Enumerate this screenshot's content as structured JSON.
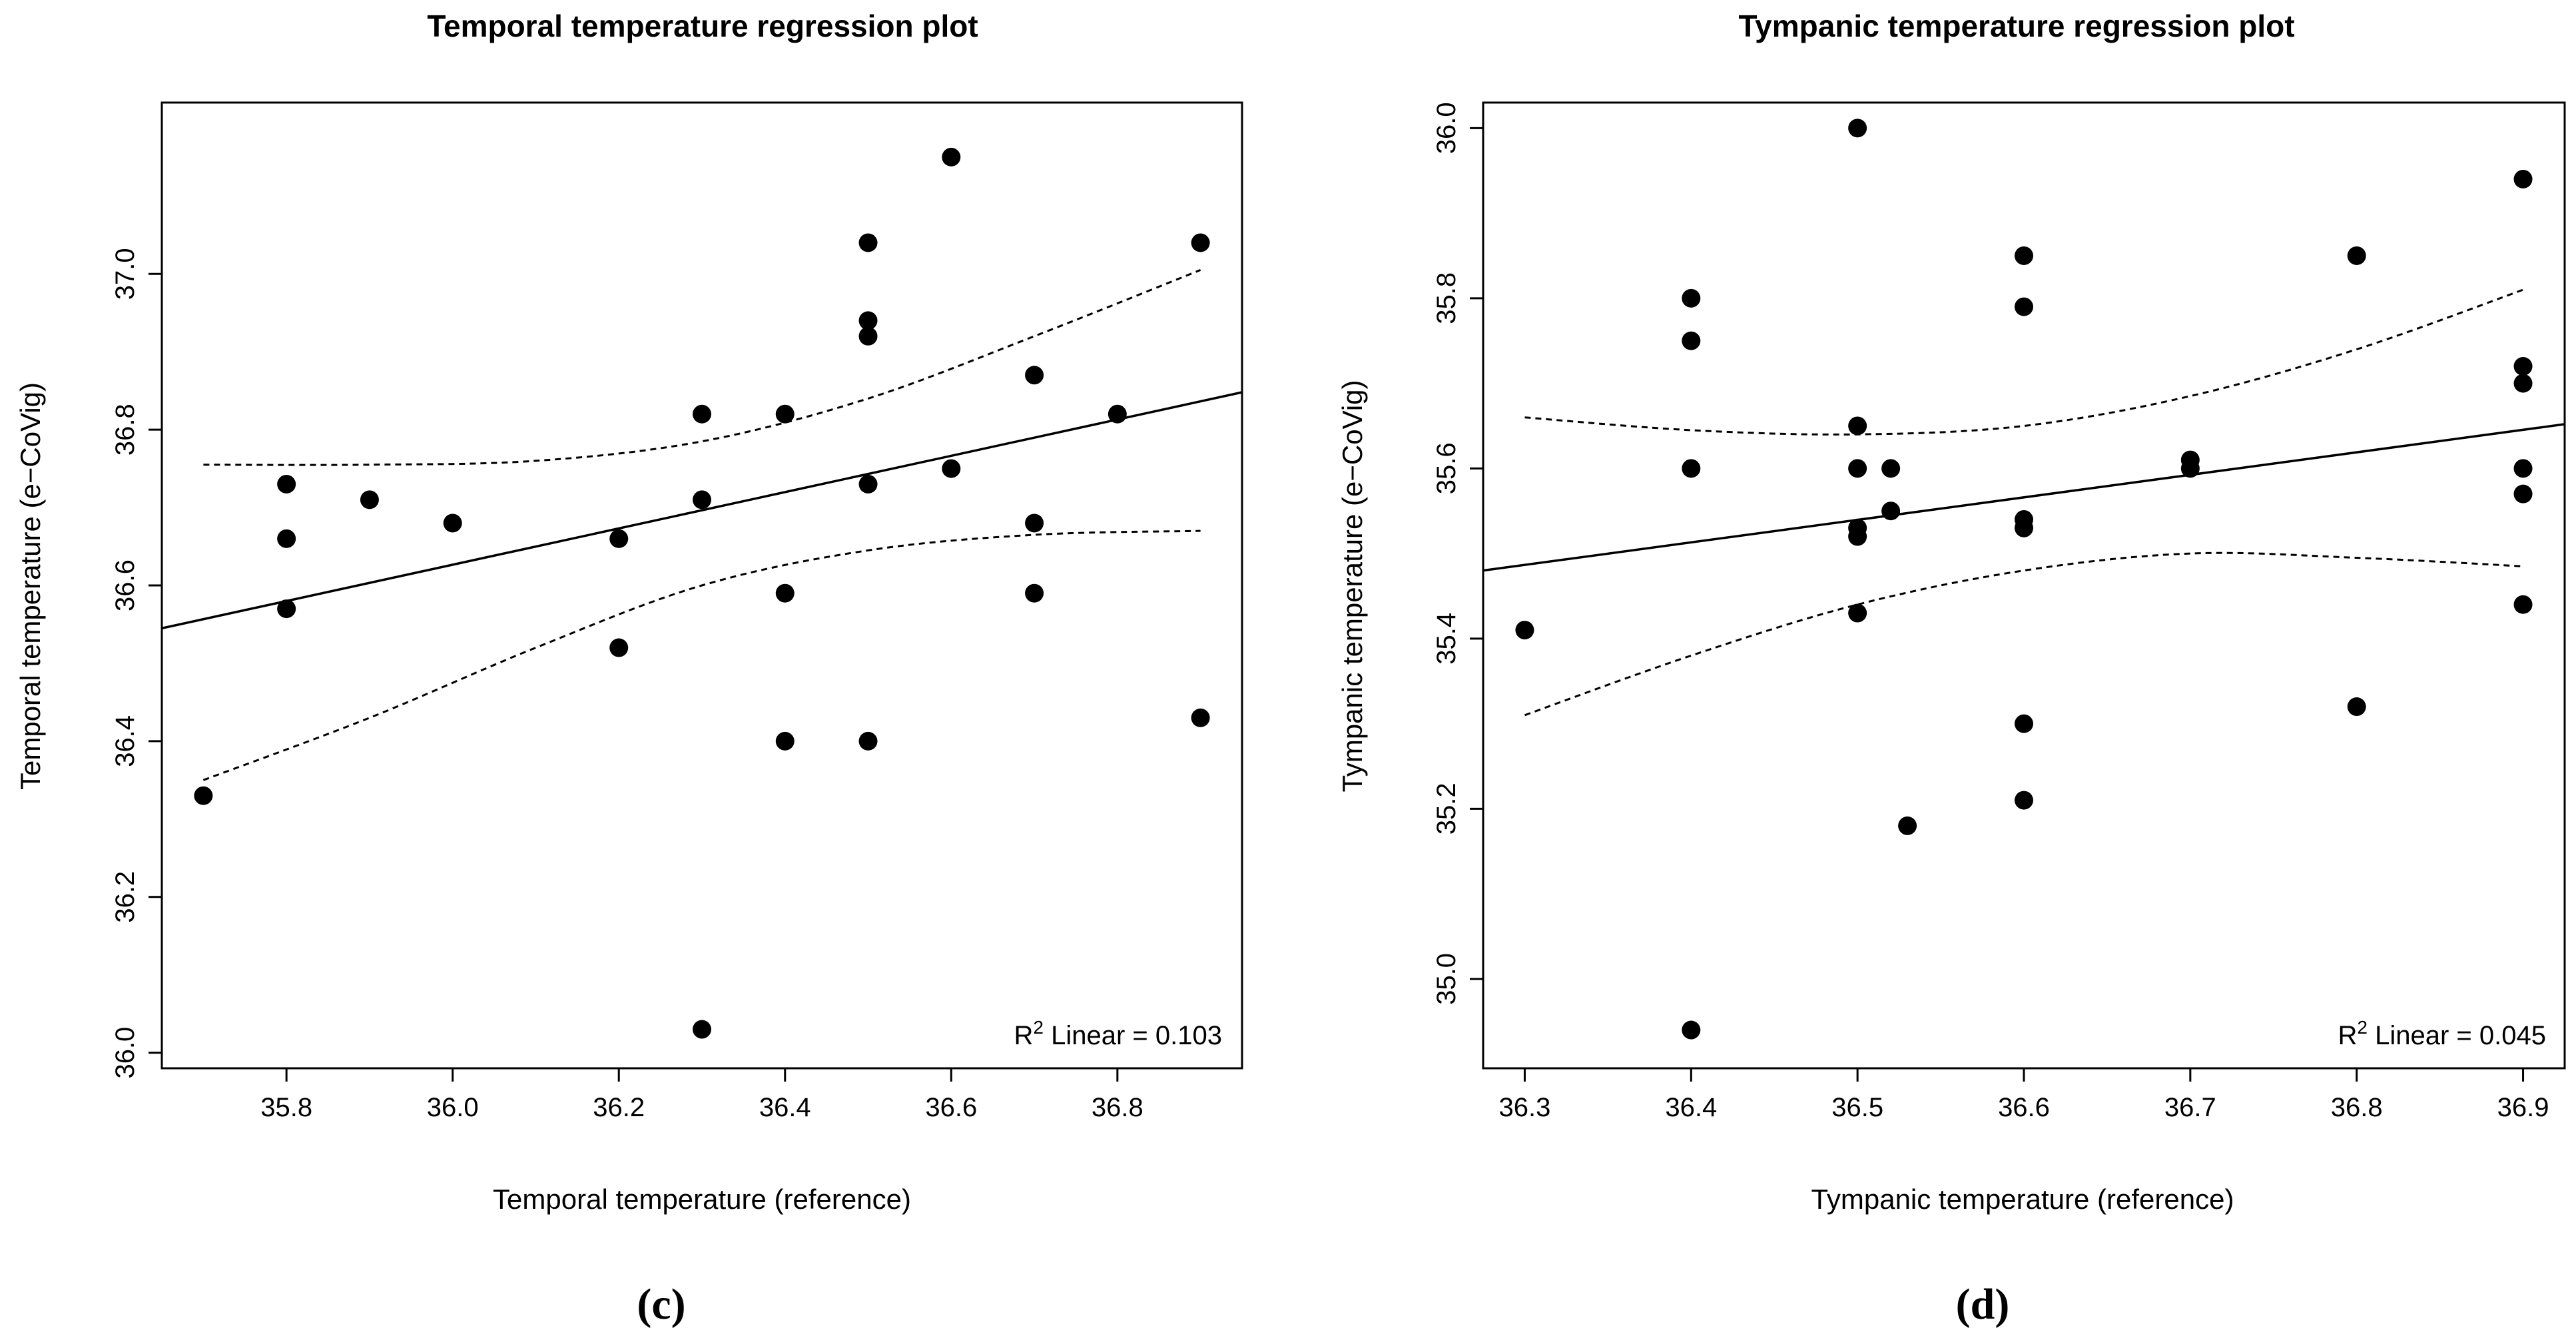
{
  "figure": {
    "panels": [
      {
        "label": "(c)",
        "annotation": {
          "prefix": "R",
          "superscript": "2",
          "text": " Linear = 0.103"
        }
      },
      {
        "label": "(d)",
        "annotation": {
          "prefix": "R",
          "superscript": "2",
          "text": " Linear = 0.045"
        }
      }
    ]
  },
  "chart_data": [
    {
      "type": "scatter",
      "title": "Temporal temperature regression plot",
      "xlabel": "Temporal temperature (reference)",
      "ylabel": "Temporal temperature (e−CoVig)",
      "xlim": [
        35.65,
        36.95
      ],
      "ylim": [
        35.98,
        37.22
      ],
      "xticks": [
        35.8,
        36.0,
        36.2,
        36.4,
        36.6,
        36.8
      ],
      "xtick_labels": [
        "35.8",
        "36.0",
        "36.2",
        "36.4",
        "36.6",
        "36.8"
      ],
      "yticks": [
        36.0,
        36.2,
        36.4,
        36.6,
        36.8,
        37.0
      ],
      "ytick_labels": [
        "36.0",
        "36.2",
        "36.4",
        "36.6",
        "36.8",
        "37.0"
      ],
      "grid": false,
      "points": [
        [
          35.7,
          36.33
        ],
        [
          35.8,
          36.73
        ],
        [
          35.8,
          36.66
        ],
        [
          35.8,
          36.57
        ],
        [
          35.9,
          36.71
        ],
        [
          36.0,
          36.68
        ],
        [
          36.2,
          36.66
        ],
        [
          36.2,
          36.52
        ],
        [
          36.3,
          36.82
        ],
        [
          36.3,
          36.71
        ],
        [
          36.3,
          36.03
        ],
        [
          36.4,
          36.82
        ],
        [
          36.4,
          36.59
        ],
        [
          36.4,
          36.4
        ],
        [
          36.5,
          37.04
        ],
        [
          36.5,
          36.94
        ],
        [
          36.5,
          36.92
        ],
        [
          36.5,
          36.73
        ],
        [
          36.5,
          36.4
        ],
        [
          36.6,
          37.15
        ],
        [
          36.6,
          36.75
        ],
        [
          36.7,
          36.87
        ],
        [
          36.7,
          36.68
        ],
        [
          36.7,
          36.59
        ],
        [
          36.8,
          36.82
        ],
        [
          36.9,
          37.04
        ],
        [
          36.9,
          36.43
        ]
      ],
      "regression_line": {
        "x": [
          35.65,
          36.95
        ],
        "y": [
          36.545,
          36.848
        ]
      },
      "confidence_upper": {
        "x": [
          35.7,
          35.9,
          36.1,
          36.3,
          36.5,
          36.7,
          36.9
        ],
        "y": [
          36.755,
          36.755,
          36.76,
          36.785,
          36.84,
          36.92,
          37.005
        ]
      },
      "confidence_lower": {
        "x": [
          35.7,
          35.9,
          36.1,
          36.3,
          36.5,
          36.7,
          36.9
        ],
        "y": [
          36.35,
          36.43,
          36.52,
          36.6,
          36.645,
          36.665,
          36.67
        ]
      },
      "annotation": "R2 Linear = 0.103"
    },
    {
      "type": "scatter",
      "title": "Tympanic temperature regression plot",
      "xlabel": "Tympanic temperature (reference)",
      "ylabel": "Tympanic temperature (e−CoVig)",
      "xlim": [
        36.275,
        36.925
      ],
      "ylim": [
        34.895,
        36.03
      ],
      "xticks": [
        36.3,
        36.4,
        36.5,
        36.6,
        36.7,
        36.8,
        36.9
      ],
      "xtick_labels": [
        "36.3",
        "36.4",
        "36.5",
        "36.6",
        "36.7",
        "36.8",
        "36.9"
      ],
      "yticks": [
        35.0,
        35.2,
        35.4,
        35.6,
        35.8,
        36.0
      ],
      "ytick_labels": [
        "35.0",
        "35.2",
        "35.4",
        "35.6",
        "35.8",
        "36.0"
      ],
      "grid": false,
      "points": [
        [
          36.3,
          35.41
        ],
        [
          36.4,
          35.8
        ],
        [
          36.4,
          35.75
        ],
        [
          36.4,
          35.6
        ],
        [
          36.4,
          34.94
        ],
        [
          36.5,
          36.0
        ],
        [
          36.5,
          35.65
        ],
        [
          36.5,
          35.6
        ],
        [
          36.5,
          35.53
        ],
        [
          36.5,
          35.52
        ],
        [
          36.5,
          35.43
        ],
        [
          36.52,
          35.6
        ],
        [
          36.52,
          35.55
        ],
        [
          36.53,
          35.18
        ],
        [
          36.6,
          35.85
        ],
        [
          36.6,
          35.79
        ],
        [
          36.6,
          35.54
        ],
        [
          36.6,
          35.53
        ],
        [
          36.6,
          35.3
        ],
        [
          36.6,
          35.21
        ],
        [
          36.7,
          35.61
        ],
        [
          36.7,
          35.6
        ],
        [
          36.8,
          35.85
        ],
        [
          36.8,
          35.32
        ],
        [
          36.9,
          35.94
        ],
        [
          36.9,
          35.72
        ],
        [
          36.9,
          35.7
        ],
        [
          36.9,
          35.6
        ],
        [
          36.9,
          35.57
        ],
        [
          36.9,
          35.44
        ]
      ],
      "regression_line": {
        "x": [
          36.275,
          36.925
        ],
        "y": [
          35.48,
          35.652
        ]
      },
      "confidence_upper": {
        "x": [
          36.3,
          36.4,
          36.5,
          36.6,
          36.7,
          36.8,
          36.9
        ],
        "y": [
          35.66,
          35.645,
          35.64,
          35.65,
          35.685,
          35.74,
          35.81
        ]
      },
      "confidence_lower": {
        "x": [
          36.3,
          36.4,
          36.5,
          36.6,
          36.7,
          36.8,
          36.9
        ],
        "y": [
          35.31,
          35.38,
          35.44,
          35.48,
          35.5,
          35.495,
          35.485
        ]
      },
      "annotation": "R2 Linear = 0.045"
    }
  ]
}
